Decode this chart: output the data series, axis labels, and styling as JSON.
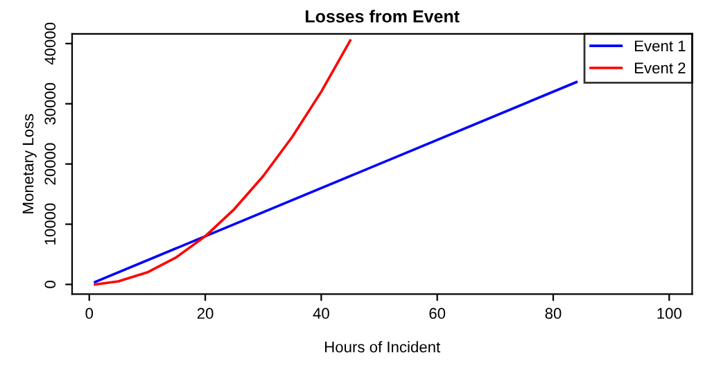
{
  "chart_data": {
    "type": "line",
    "title": "Losses from Event",
    "xlabel": "Hours of Incident",
    "ylabel": "Monetary Loss",
    "xlim": [
      -2.96,
      103.96
    ],
    "xticks": [
      0,
      20,
      40,
      60,
      80,
      100
    ],
    "ylim": [
      -1600,
      41600
    ],
    "yticks": [
      0,
      10000,
      20000,
      30000,
      40000
    ],
    "series": [
      {
        "name": "Event 1",
        "color": "#0000ff",
        "x": [
          1,
          84
        ],
        "values": [
          400,
          33600
        ]
      },
      {
        "name": "Event 2",
        "color": "#ff0000",
        "x": [
          1,
          5,
          10,
          15,
          20,
          25,
          30,
          35,
          40,
          45
        ],
        "values": [
          0,
          500,
          2000,
          4500,
          8000,
          12500,
          18000,
          24500,
          32000,
          40500
        ]
      }
    ],
    "legend": "top right",
    "grid": false,
    "marker": "none",
    "line_style": "solid"
  }
}
